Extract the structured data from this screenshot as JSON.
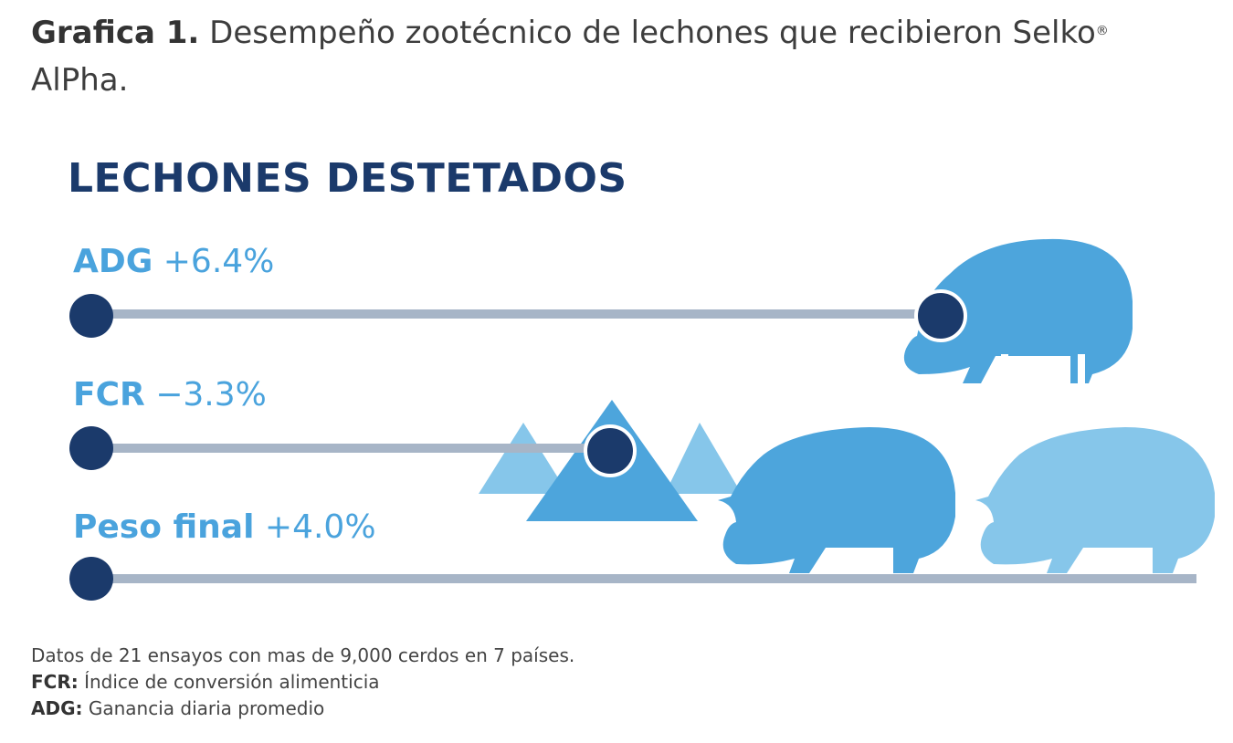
{
  "caption": {
    "label": "Grafica 1.",
    "text": "Desempeño zootécnico de lechones que recibieron Selko",
    "mark": "®",
    "line2": "AlPha."
  },
  "chart_data": {
    "type": "bar",
    "title": "LECHONES DESTETADOS",
    "categories": [
      "ADG",
      "FCR",
      "Peso final"
    ],
    "values": [
      6.4,
      -3.3,
      4.0
    ],
    "labels": [
      "+6.4%",
      "−3.3%",
      "+4.0%"
    ],
    "unit": "%"
  },
  "colors": {
    "navy": "#1b3a6b",
    "blue": "#4aa3dd",
    "pig_dark": "#4da5dc",
    "pig_light": "#86c6ea",
    "track": "#a7b5c7"
  },
  "icons": [
    "pig-icon",
    "mountain-icon"
  ],
  "footnote": {
    "line1": "Datos de 21 ensayos con mas de 9,000 cerdos en 7 países.",
    "fcr_key": "FCR:",
    "fcr_def": "Índice de conversión alimenticia",
    "adg_key": "ADG:",
    "adg_def": "Ganancia diaria promedio"
  }
}
